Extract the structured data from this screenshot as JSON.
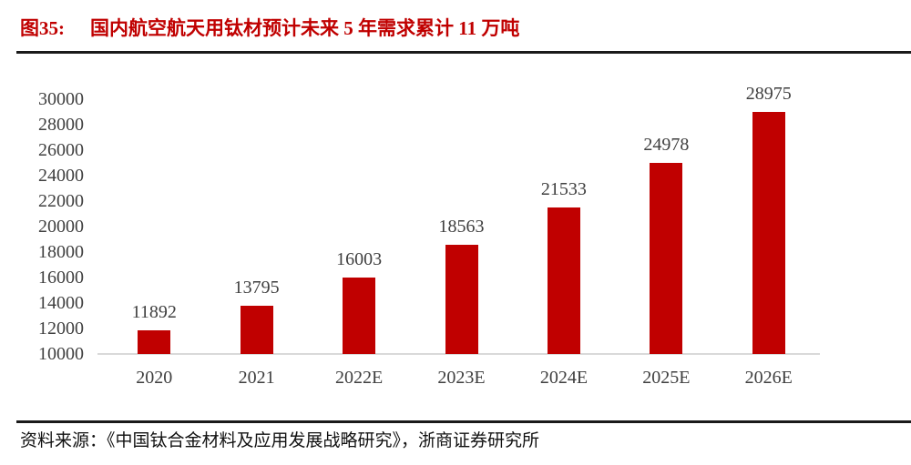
{
  "figure": {
    "label": "图35:",
    "title": "国内航空航天用钛材预计未来 5 年需求累计 11 万吨"
  },
  "chart_data": {
    "type": "bar",
    "title": "国内航空航天用钛材预计未来 5 年需求累计 11 万吨",
    "categories": [
      "2020",
      "2021",
      "2022E",
      "2023E",
      "2024E",
      "2025E",
      "2026E"
    ],
    "values": [
      11892,
      13795,
      16003,
      18563,
      21533,
      24978,
      28975
    ],
    "data_labels": [
      11892,
      13795,
      16003,
      18563,
      21533,
      24978,
      28975
    ],
    "ylim": [
      10000,
      30000
    ],
    "ytick_step": 2000,
    "yticks": [
      10000,
      12000,
      14000,
      16000,
      18000,
      20000,
      22000,
      24000,
      26000,
      28000,
      30000
    ],
    "grid": false,
    "legend": "none",
    "xlabel": "",
    "ylabel": ""
  },
  "footer": {
    "source": "资料来源：《中国钛合金材料及应用发展战略研究》，浙商证券研究所"
  },
  "colors": {
    "bar_red": "#c00000",
    "title_red": "#c00000",
    "chart_text": "#3f3f3f",
    "baseline_gray": "#d9d9d9",
    "rule_dark": "#1a1a1a",
    "footer_text": "#111111"
  }
}
